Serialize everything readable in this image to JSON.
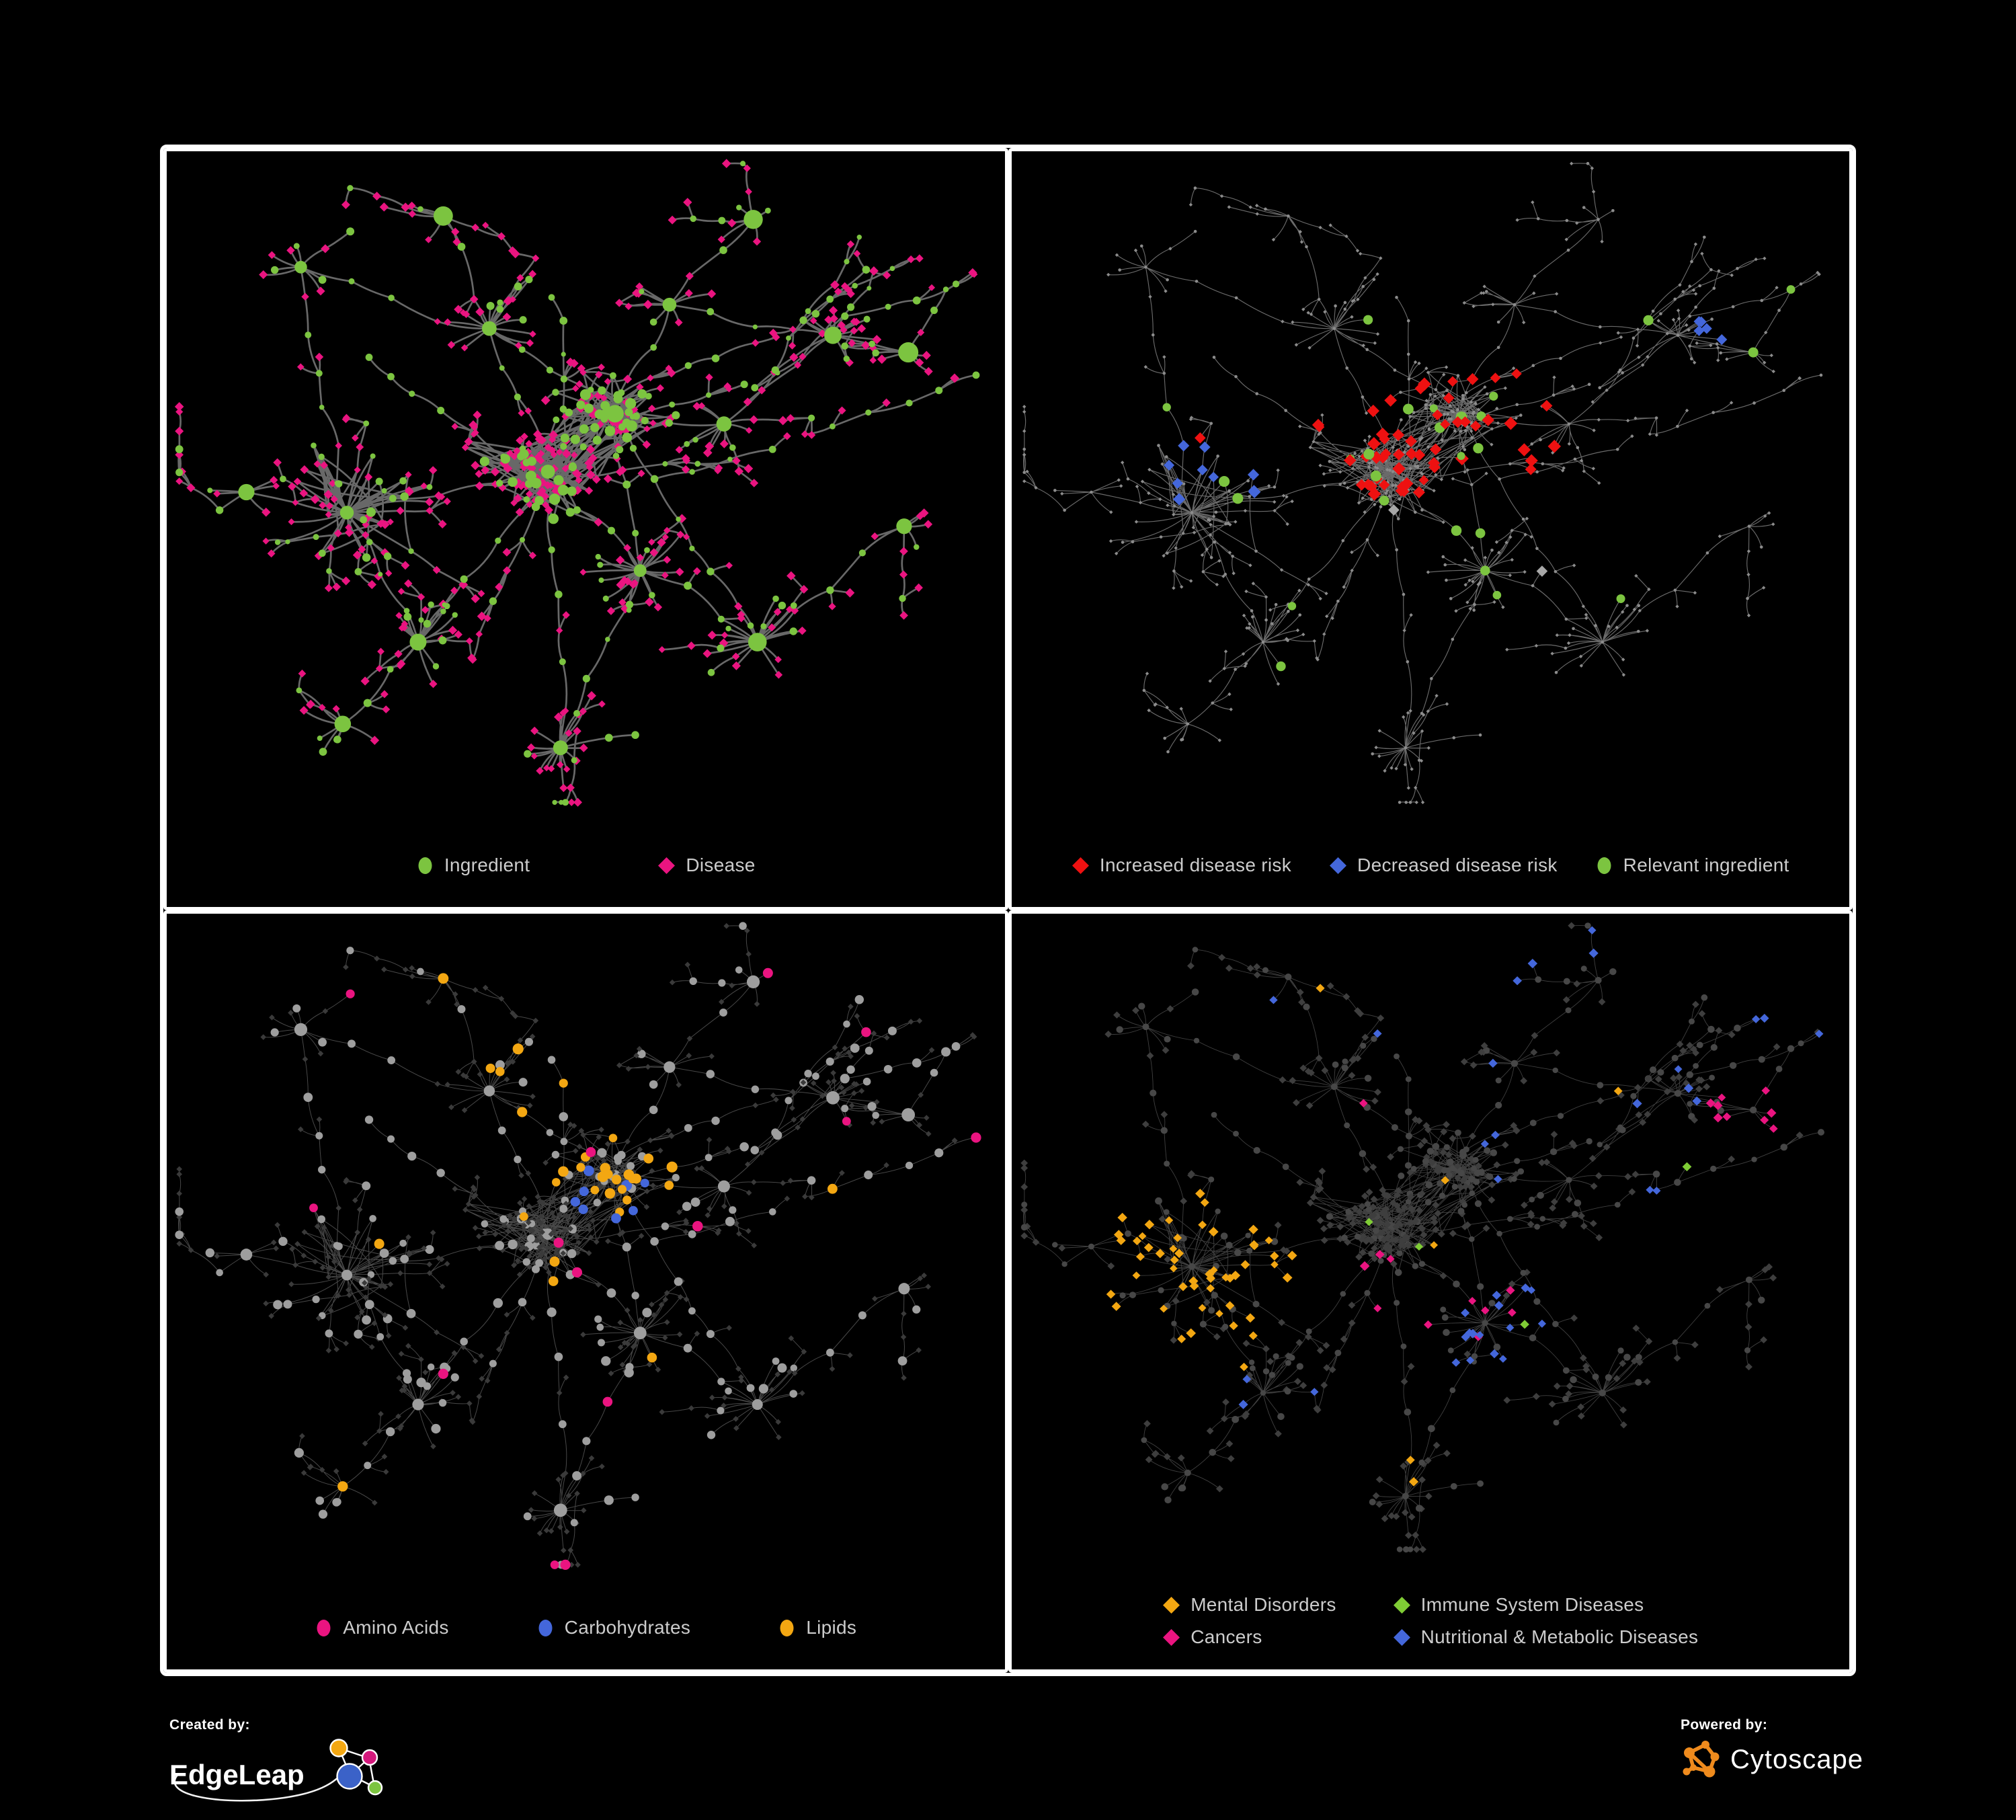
{
  "page": {
    "background": "#000000",
    "frame_color": "#FFFFFF",
    "legend_text_color": "#CCCCCC"
  },
  "branding": {
    "created_by_label": "Created by:",
    "created_by_name": "EdgeLeap",
    "powered_by_label": "Powered by:",
    "powered_by_name": "Cytoscape",
    "cytoscape_orange": "#EF8B1D",
    "edgeleap_node_colors": [
      "#F3A712",
      "#D4187C",
      "#3B62C8",
      "#7CC440"
    ]
  },
  "panels": [
    {
      "id": "ingredient-disease",
      "legend": {
        "columns": 1,
        "items": [
          {
            "shape": "circle",
            "color": "#7CC440",
            "label": "Ingredient"
          },
          {
            "shape": "diamond",
            "color": "#EA1480",
            "label": "Disease"
          }
        ]
      }
    },
    {
      "id": "disease-risk",
      "legend": {
        "columns": 1,
        "items": [
          {
            "shape": "diamond",
            "color": "#EE1111",
            "label": "Increased disease risk"
          },
          {
            "shape": "diamond",
            "color": "#4467DB",
            "label": "Decreased disease risk"
          },
          {
            "shape": "circle",
            "color": "#7CC440",
            "label": "Relevant ingredient"
          }
        ]
      }
    },
    {
      "id": "nutrient-classes",
      "legend": {
        "columns": 1,
        "items": [
          {
            "shape": "circle",
            "color": "#EA1480",
            "label": "Amino Acids"
          },
          {
            "shape": "circle",
            "color": "#4467DB",
            "label": "Carbohydrates"
          },
          {
            "shape": "circle",
            "color": "#F3A712",
            "label": "Lipids"
          }
        ]
      }
    },
    {
      "id": "disease-categories",
      "legend": {
        "columns": 2,
        "items": [
          {
            "shape": "diamond",
            "color": "#F3A712",
            "label": "Mental Disorders"
          },
          {
            "shape": "diamond",
            "color": "#7FCC35",
            "label": "Immune System Diseases"
          },
          {
            "shape": "diamond",
            "color": "#EA1480",
            "label": "Cancers"
          },
          {
            "shape": "diamond",
            "color": "#4467DB",
            "label": "Nutritional & Metabolic Diseases"
          }
        ]
      }
    }
  ],
  "panel_styles": {
    "ingredient-disease": {
      "edge": "#6E6E6E",
      "ingredient": "#7CC440",
      "disease": "#EA1480"
    },
    "disease-risk": {
      "edge": "#7C7C7C",
      "base": "#8C8C8C",
      "increased": "#EE1111",
      "decreased": "#4467DB",
      "neutral": "#A8A8A8",
      "ingredient": "#7CC440"
    },
    "nutrient-classes": {
      "edge": "#8F8F8F",
      "ingredient_base": "#9E9E9E",
      "disease_base": "#3A3A3A",
      "amino_acids": "#EA1480",
      "carbohydrates": "#4467DB",
      "lipids": "#F3A712"
    },
    "disease-categories": {
      "edge": "#8F8F8F",
      "ingredient_base": "#474747",
      "disease_base": "#3E3E3E",
      "mental": "#F3A712",
      "immune": "#7FCC35",
      "cancers": "#EA1480",
      "nutritional": "#4467DB"
    }
  }
}
